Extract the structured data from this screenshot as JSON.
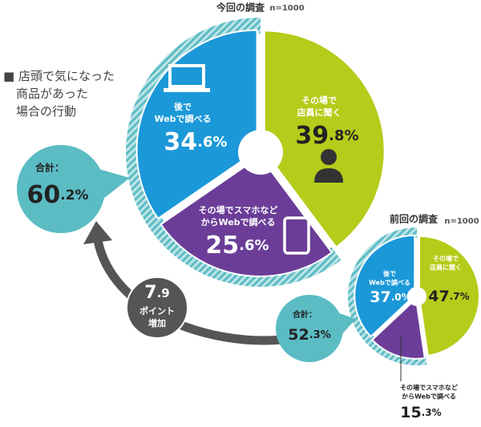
{
  "heading": [
    "■ 店頭で気になった",
    "商品があった",
    "場合の行動"
  ],
  "increase": {
    "value": "7.9",
    "caption": [
      "ポイント",
      "増加"
    ]
  },
  "chart_data": [
    {
      "type": "pie",
      "title": "今回の調査",
      "note": "n=1000",
      "categories": [
        [
          "その場で",
          "店員に聞く"
        ],
        [
          "その場でスマホなど",
          "からWebで調べる"
        ],
        [
          "後で",
          "Webで調べる"
        ]
      ],
      "values": [
        39.8,
        25.6,
        34.6
      ],
      "value_labels": [
        "39.8%",
        "25.6%",
        "34.6%"
      ],
      "colors": [
        "#b5cc1a",
        "#6b3d98",
        "#1b98d8"
      ],
      "total_caption": "合計：",
      "total": 60.2,
      "total_label": "60.2%"
    },
    {
      "type": "pie",
      "title": "前回の調査",
      "note": "n=1000",
      "categories": [
        [
          "その場で",
          "店員に聞く"
        ],
        [
          "その場でスマホなど",
          "からWebで調べる"
        ],
        [
          "後で",
          "Webで調べる"
        ]
      ],
      "values": [
        47.7,
        15.3,
        37.0
      ],
      "value_labels": [
        "47.7%",
        "15.3%",
        "37.0%"
      ],
      "colors": [
        "#b5cc1a",
        "#6b3d98",
        "#1b98d8"
      ],
      "total_caption": "合計：",
      "total": 52.3,
      "total_label": "52.3%"
    }
  ]
}
